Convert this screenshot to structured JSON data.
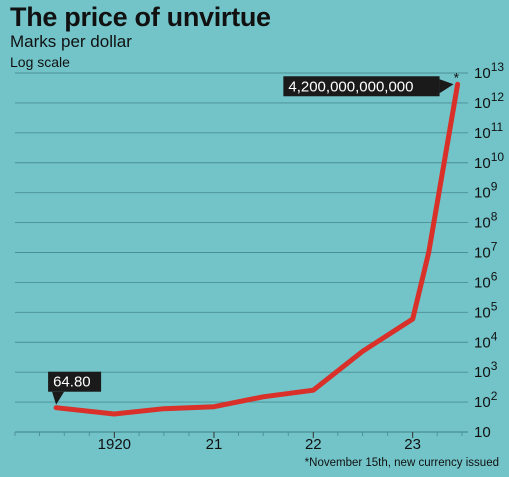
{
  "chart_data": {
    "type": "line",
    "title": "The price of unvirtue",
    "subtitle": "Marks per dollar",
    "scale_note": "Log scale",
    "footnote": "*November 15th, new currency issued",
    "y_scale": "log",
    "ylim": [
      10,
      10000000000000
    ],
    "y_ticks": [
      {
        "value": 10,
        "base": "10",
        "exp": ""
      },
      {
        "value": 100,
        "base": "10",
        "exp": "2"
      },
      {
        "value": 1000,
        "base": "10",
        "exp": "3"
      },
      {
        "value": 10000,
        "base": "10",
        "exp": "4"
      },
      {
        "value": 100000,
        "base": "10",
        "exp": "5"
      },
      {
        "value": 1000000,
        "base": "10",
        "exp": "6"
      },
      {
        "value": 10000000,
        "base": "10",
        "exp": "7"
      },
      {
        "value": 100000000,
        "base": "10",
        "exp": "8"
      },
      {
        "value": 1000000000,
        "base": "10",
        "exp": "9"
      },
      {
        "value": 10000000000,
        "base": "10",
        "exp": "10"
      },
      {
        "value": 100000000000,
        "base": "10",
        "exp": "11"
      },
      {
        "value": 1000000000000,
        "base": "10",
        "exp": "12"
      },
      {
        "value": 10000000000000,
        "base": "10",
        "exp": "13"
      }
    ],
    "x_ticks": [
      {
        "value": "1920-01-01",
        "label": "1920"
      },
      {
        "value": "1921-01-01",
        "label": "21"
      },
      {
        "value": "1922-01-01",
        "label": "22"
      },
      {
        "value": "1923-01-01",
        "label": "23"
      }
    ],
    "xlim": [
      "1919-01-01",
      "1924-01-01"
    ],
    "series": [
      {
        "color": "#d9302a",
        "points": [
          {
            "x": "1919-06-01",
            "y": 64.8
          },
          {
            "x": "1920-01-01",
            "y": 40
          },
          {
            "x": "1920-07-01",
            "y": 60
          },
          {
            "x": "1921-01-01",
            "y": 70
          },
          {
            "x": "1921-07-01",
            "y": 150
          },
          {
            "x": "1922-01-01",
            "y": 250
          },
          {
            "x": "1922-07-01",
            "y": 5000
          },
          {
            "x": "1923-01-01",
            "y": 60000
          },
          {
            "x": "1923-03-01",
            "y": 10000000
          },
          {
            "x": "1923-06-15",
            "y": 4200000000000
          }
        ]
      }
    ],
    "annotations": [
      {
        "label": "64.80",
        "x": "1919-06-01",
        "y": 64.8,
        "placement": "above"
      },
      {
        "label": "4,200,000,000,000",
        "marker": "*",
        "x": "1923-06-15",
        "y": 4200000000000,
        "placement": "left"
      }
    ],
    "grid": true,
    "colors": {
      "background": "#72c4c9",
      "line": "#d9302a",
      "grid": "#4a8f94",
      "label_box": "#1a1a1a"
    }
  }
}
